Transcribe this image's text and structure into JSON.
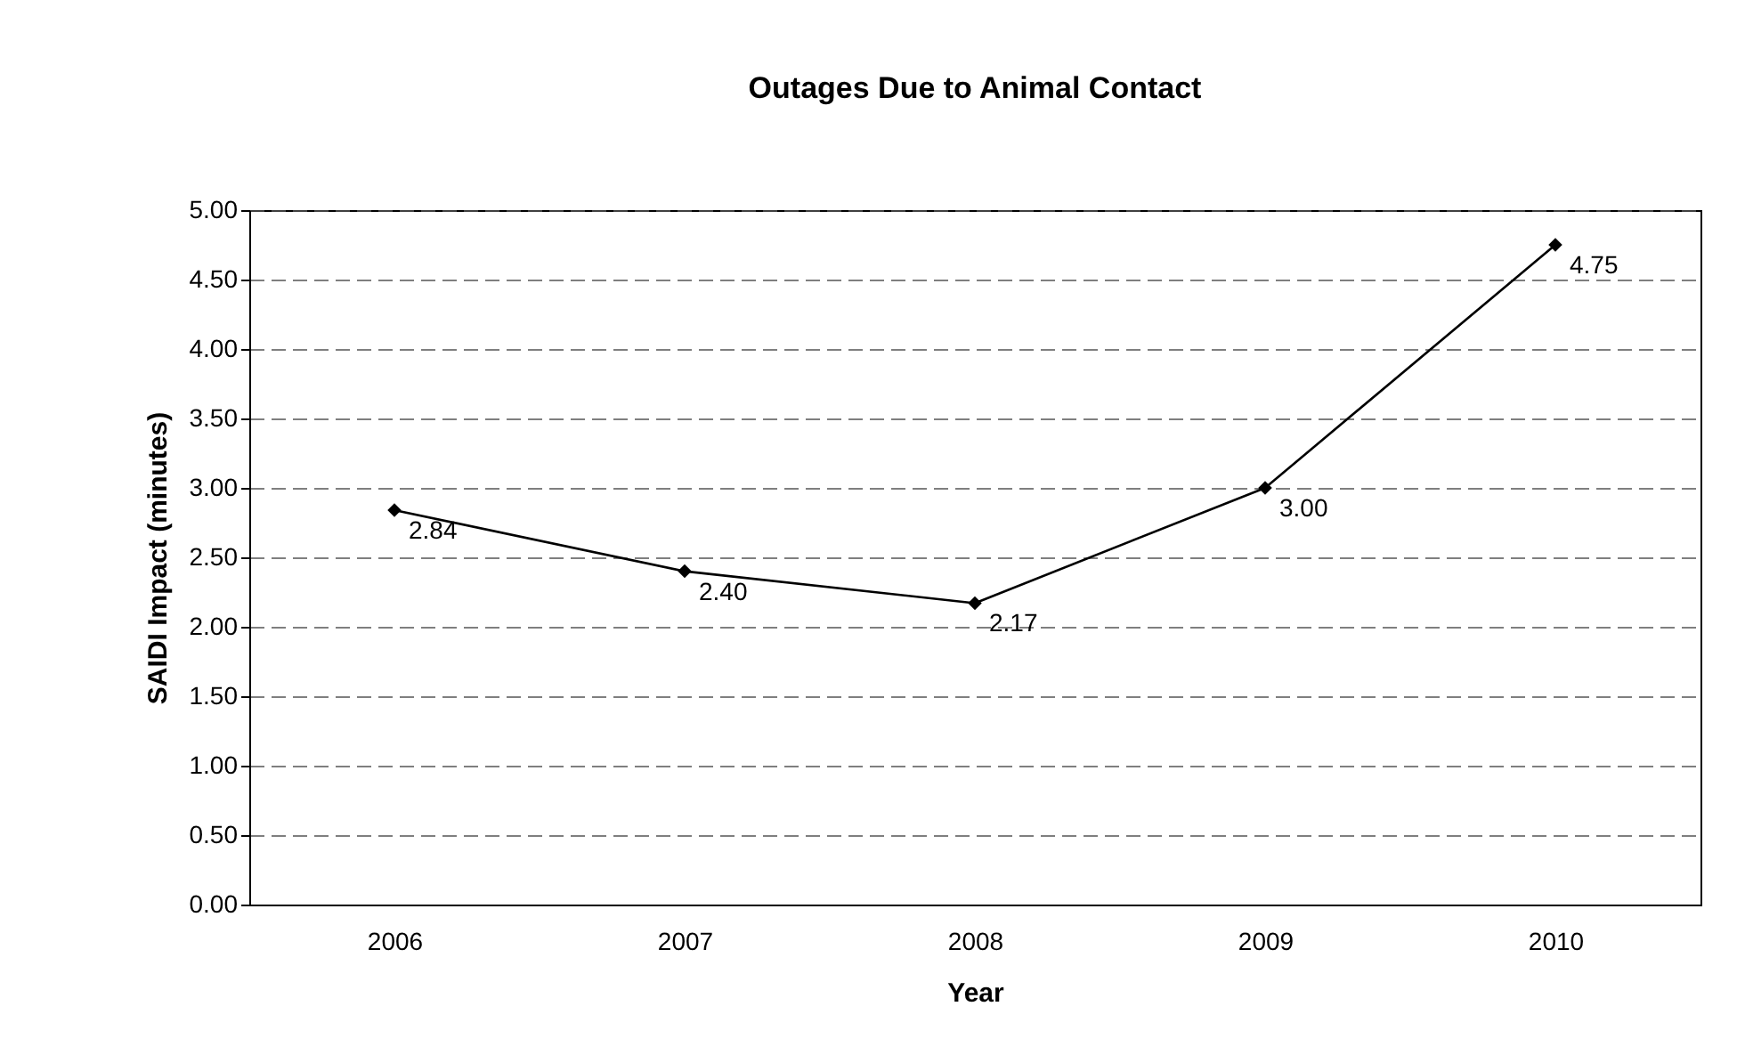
{
  "chart_data": {
    "type": "line",
    "title": "Outages Due to Animal Contact",
    "xlabel": "Year",
    "ylabel": "SAIDI Impact (minutes)",
    "categories": [
      "2006",
      "2007",
      "2008",
      "2009",
      "2010"
    ],
    "series": [
      {
        "color": "#000000",
        "values": [
          2.84,
          2.4,
          2.17,
          3.0,
          4.75
        ],
        "value_labels": [
          "2.84",
          "2.40",
          "2.17",
          "3.00",
          "4.75"
        ]
      }
    ],
    "ylim": [
      0,
      5
    ],
    "yticks": [
      {
        "value": 0,
        "label": "0.00"
      },
      {
        "value": 0.5,
        "label": "0.50"
      },
      {
        "value": 1,
        "label": "1.00"
      },
      {
        "value": 1.5,
        "label": "1.50"
      },
      {
        "value": 2,
        "label": "2.00"
      },
      {
        "value": 2.5,
        "label": "2.50"
      },
      {
        "value": 3,
        "label": "3.00"
      },
      {
        "value": 3.5,
        "label": "3.50"
      },
      {
        "value": 4,
        "label": "4.00"
      },
      {
        "value": 4.5,
        "label": "4.50"
      },
      {
        "value": 5,
        "label": "5.00"
      }
    ],
    "grid": "y",
    "legend": false,
    "marker": "diamond",
    "line_style": "solid"
  }
}
